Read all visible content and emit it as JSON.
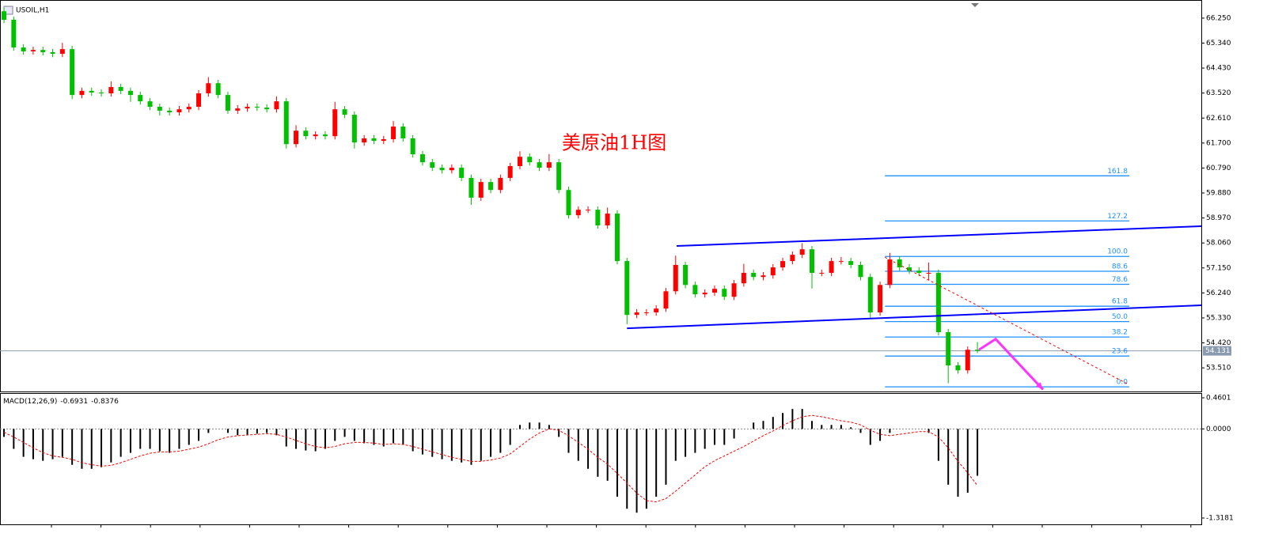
{
  "chart_data": [
    {
      "type": "candlestick",
      "symbol": "USOIL,H1",
      "title": "美原油1H图",
      "up_color": "#ff0000",
      "down_color": "#00c000",
      "xlim": [
        -0.41,
        123
      ],
      "ylim": [
        52.65,
        66.91
      ],
      "yticks": [
        {
          "value": 66.25,
          "label": "66.250"
        },
        {
          "value": 65.34,
          "label": "65.340"
        },
        {
          "value": 64.43,
          "label": "64.430"
        },
        {
          "value": 63.52,
          "label": "63.520"
        },
        {
          "value": 62.61,
          "label": "62.610"
        },
        {
          "value": 61.7,
          "label": "61.700"
        },
        {
          "value": 60.79,
          "label": "60.790"
        },
        {
          "value": 59.88,
          "label": "59.880"
        },
        {
          "value": 58.97,
          "label": "58.970"
        },
        {
          "value": 58.06,
          "label": "58.060"
        },
        {
          "value": 57.15,
          "label": "57.150"
        },
        {
          "value": 56.24,
          "label": "56.240"
        },
        {
          "value": 55.33,
          "label": "55.330"
        },
        {
          "value": 54.42,
          "label": "54.420"
        },
        {
          "value": 53.51,
          "label": "53.510"
        }
      ],
      "last_price": 54.131,
      "ohlc": [
        [
          66.5,
          66.62,
          66.07,
          66.19
        ],
        [
          66.19,
          66.31,
          65.06,
          65.18
        ],
        [
          65.18,
          65.3,
          64.92,
          65.04
        ],
        [
          65.04,
          65.21,
          64.92,
          65.09
        ],
        [
          65.09,
          65.21,
          64.89,
          65.01
        ],
        [
          65.01,
          65.13,
          64.83,
          64.95
        ],
        [
          64.95,
          65.35,
          64.83,
          65.12
        ],
        [
          65.12,
          65.24,
          63.3,
          63.45
        ],
        [
          63.45,
          63.72,
          63.33,
          63.6
        ],
        [
          63.6,
          63.72,
          63.42,
          63.54
        ],
        [
          63.54,
          63.66,
          63.39,
          63.51
        ],
        [
          63.51,
          63.95,
          63.39,
          63.74
        ],
        [
          63.74,
          63.86,
          63.48,
          63.6
        ],
        [
          63.6,
          63.72,
          63.2,
          63.45
        ],
        [
          63.45,
          63.57,
          63.1,
          63.22
        ],
        [
          63.22,
          63.34,
          62.9,
          63.02
        ],
        [
          63.02,
          63.14,
          62.7,
          62.88
        ],
        [
          62.88,
          63.0,
          62.7,
          62.82
        ],
        [
          62.82,
          63.05,
          62.7,
          62.93
        ],
        [
          62.93,
          63.14,
          62.81,
          63.02
        ],
        [
          63.02,
          63.63,
          62.9,
          63.51
        ],
        [
          63.51,
          64.1,
          63.39,
          63.88
        ],
        [
          63.88,
          64.0,
          63.33,
          63.45
        ],
        [
          63.45,
          63.57,
          62.76,
          62.88
        ],
        [
          62.88,
          63.08,
          62.76,
          62.96
        ],
        [
          62.96,
          63.14,
          62.84,
          63.02
        ],
        [
          63.02,
          63.14,
          62.87,
          62.99
        ],
        [
          62.99,
          63.11,
          62.81,
          62.93
        ],
        [
          62.93,
          63.4,
          62.81,
          63.22
        ],
        [
          63.22,
          63.34,
          61.5,
          61.66
        ],
        [
          61.66,
          62.35,
          61.54,
          62.15
        ],
        [
          62.15,
          62.27,
          61.83,
          61.95
        ],
        [
          61.95,
          62.13,
          61.83,
          62.01
        ],
        [
          62.01,
          62.13,
          61.83,
          61.95
        ],
        [
          61.95,
          63.2,
          61.83,
          62.93
        ],
        [
          62.93,
          63.05,
          62.61,
          62.73
        ],
        [
          62.73,
          62.85,
          61.5,
          61.72
        ],
        [
          61.72,
          61.99,
          61.6,
          61.87
        ],
        [
          61.87,
          61.99,
          61.66,
          61.78
        ],
        [
          61.78,
          61.96,
          61.66,
          61.84
        ],
        [
          61.84,
          62.5,
          61.72,
          62.3
        ],
        [
          62.3,
          62.42,
          61.75,
          61.87
        ],
        [
          61.87,
          61.99,
          61.17,
          61.29
        ],
        [
          61.29,
          61.41,
          60.88,
          61.0
        ],
        [
          61.0,
          61.12,
          60.68,
          60.8
        ],
        [
          60.8,
          60.92,
          60.59,
          60.71
        ],
        [
          60.71,
          60.92,
          60.59,
          60.8
        ],
        [
          60.8,
          60.92,
          60.31,
          60.43
        ],
        [
          60.43,
          60.55,
          59.45,
          59.71
        ],
        [
          59.71,
          60.4,
          59.59,
          60.28
        ],
        [
          60.28,
          60.4,
          59.87,
          59.99
        ],
        [
          59.99,
          60.55,
          59.87,
          60.43
        ],
        [
          60.43,
          60.98,
          60.31,
          60.86
        ],
        [
          60.86,
          61.4,
          60.74,
          61.2
        ],
        [
          61.2,
          61.32,
          60.88,
          61.0
        ],
        [
          61.0,
          61.12,
          60.68,
          60.8
        ],
        [
          60.8,
          61.3,
          60.68,
          61.0
        ],
        [
          61.0,
          61.12,
          59.87,
          59.99
        ],
        [
          59.99,
          60.11,
          58.95,
          59.07
        ],
        [
          59.07,
          59.39,
          58.95,
          59.27
        ],
        [
          59.27,
          59.39,
          59.15,
          59.27
        ],
        [
          59.27,
          59.39,
          58.58,
          58.7
        ],
        [
          58.7,
          59.35,
          58.58,
          59.13
        ],
        [
          59.13,
          59.25,
          57.28,
          57.4
        ],
        [
          57.4,
          57.52,
          55.1,
          55.44
        ],
        [
          55.44,
          55.65,
          55.32,
          55.53
        ],
        [
          55.53,
          55.65,
          55.41,
          55.53
        ],
        [
          55.53,
          55.79,
          55.41,
          55.67
        ],
        [
          55.67,
          56.42,
          55.55,
          56.3
        ],
        [
          56.3,
          57.6,
          56.18,
          57.26
        ],
        [
          57.26,
          57.38,
          56.41,
          56.53
        ],
        [
          56.53,
          56.65,
          56.07,
          56.19
        ],
        [
          56.19,
          56.37,
          56.07,
          56.25
        ],
        [
          56.25,
          56.51,
          56.13,
          56.39
        ],
        [
          56.39,
          56.51,
          55.98,
          56.1
        ],
        [
          56.1,
          56.71,
          55.98,
          56.59
        ],
        [
          56.59,
          57.3,
          56.47,
          56.97
        ],
        [
          56.97,
          57.09,
          56.7,
          56.82
        ],
        [
          56.82,
          57.0,
          56.7,
          56.88
        ],
        [
          56.88,
          57.29,
          56.76,
          57.17
        ],
        [
          57.17,
          57.52,
          57.05,
          57.4
        ],
        [
          57.4,
          57.75,
          57.28,
          57.63
        ],
        [
          57.63,
          58.05,
          57.51,
          57.83
        ],
        [
          57.83,
          57.95,
          56.4,
          56.97
        ],
        [
          56.97,
          57.09,
          56.85,
          56.97
        ],
        [
          56.97,
          57.52,
          56.85,
          57.4
        ],
        [
          57.4,
          57.55,
          57.28,
          57.4
        ],
        [
          57.4,
          57.52,
          57.14,
          57.26
        ],
        [
          57.26,
          57.38,
          56.7,
          56.82
        ],
        [
          56.82,
          56.94,
          55.3,
          55.53
        ],
        [
          55.53,
          56.65,
          55.41,
          56.53
        ],
        [
          56.53,
          57.7,
          56.41,
          57.46
        ],
        [
          57.46,
          57.58,
          57.05,
          57.17
        ],
        [
          57.17,
          57.29,
          56.93,
          57.05
        ],
        [
          57.05,
          57.17,
          56.85,
          56.97
        ],
        [
          56.97,
          57.35,
          56.7,
          56.97
        ],
        [
          56.97,
          57.09,
          54.69,
          54.81
        ],
        [
          54.81,
          54.93,
          52.95,
          53.6
        ],
        [
          53.6,
          53.72,
          53.3,
          53.42
        ],
        [
          53.42,
          54.29,
          53.3,
          54.17
        ],
        [
          54.17,
          54.45,
          54.05,
          54.13
        ]
      ],
      "channel": [
        {
          "x": [
            64,
            123
          ],
          "y": [
            54.95,
            55.79
          ],
          "color": "#0000ff"
        },
        {
          "x": [
            69.1,
            123
          ],
          "y": [
            57.95,
            58.67
          ],
          "color": "#0000ff"
        }
      ],
      "trend_line": {
        "x": [
          90.5,
          115.4
        ],
        "y": [
          57.54,
          52.93
        ],
        "color": "#ff0000"
      },
      "arrow": {
        "x": [
          100.16,
          101.87,
          106.74
        ],
        "y": [
          54.17,
          54.56,
          52.72
        ],
        "color": "#ff33ff"
      },
      "fibonacci": {
        "low": 52.82,
        "high": 57.57,
        "start": 90.5,
        "end": 115.6,
        "color": "#1e90ff",
        "levels": [
          {
            "value": 0,
            "label": "0.0"
          },
          23.6,
          38.2,
          {
            "value": 50,
            "label": "50.0"
          },
          61.8,
          78.6,
          88.6,
          {
            "value": 100,
            "label": "100.0"
          },
          127.2,
          161.8
        ]
      }
    },
    {
      "type": "macd",
      "label": "MACD(12,26,9)",
      "xlim": [
        -0.41,
        123
      ],
      "ylim": [
        -1.3181,
        0.4601
      ],
      "yticks": [
        0.4601,
        {
          "value": 0,
          "label": "0.0000"
        },
        -1.3181
      ],
      "zero_line": true,
      "histogram": {
        "color": "#000000",
        "values": [
          -0.118,
          -0.295,
          -0.413,
          -0.448,
          -0.472,
          -0.448,
          -0.413,
          -0.531,
          -0.59,
          -0.59,
          -0.566,
          -0.496,
          -0.413,
          -0.354,
          -0.295,
          -0.295,
          -0.33,
          -0.354,
          -0.295,
          -0.236,
          -0.177,
          -0.059,
          0,
          -0.059,
          -0.094,
          -0.083,
          -0.071,
          -0.059,
          -0.094,
          -0.26,
          -0.295,
          -0.319,
          -0.33,
          -0.295,
          -0.177,
          -0.118,
          -0.177,
          -0.212,
          -0.236,
          -0.26,
          -0.212,
          -0.236,
          -0.33,
          -0.378,
          -0.413,
          -0.448,
          -0.472,
          -0.496,
          -0.531,
          -0.472,
          -0.413,
          -0.354,
          -0.236,
          0.059,
          0.094,
          0.094,
          0.059,
          -0.118,
          -0.354,
          -0.472,
          -0.59,
          -0.708,
          -0.767,
          -1.003,
          -1.18,
          -1.239,
          -1.18,
          -1.003,
          -0.826,
          -0.472,
          -0.413,
          -0.354,
          -0.295,
          -0.236,
          -0.236,
          -0.142,
          0,
          0.094,
          0.118,
          0.177,
          0.236,
          0.295,
          0.295,
          0.118,
          0.059,
          0.059,
          0.059,
          0.024,
          -0.059,
          -0.236,
          -0.177,
          -0.059,
          0,
          0,
          0,
          -0.059,
          -0.472,
          -0.826,
          -1.003,
          -0.944,
          -0.6931
        ]
      },
      "signal": {
        "color": "#ff0000",
        "values": [
          -0.05,
          -0.12,
          -0.2,
          -0.28,
          -0.35,
          -0.4,
          -0.42,
          -0.45,
          -0.5,
          -0.53,
          -0.55,
          -0.54,
          -0.5,
          -0.45,
          -0.4,
          -0.36,
          -0.34,
          -0.34,
          -0.33,
          -0.3,
          -0.27,
          -0.22,
          -0.16,
          -0.12,
          -0.1,
          -0.09,
          -0.08,
          -0.07,
          -0.08,
          -0.12,
          -0.17,
          -0.22,
          -0.26,
          -0.28,
          -0.26,
          -0.22,
          -0.2,
          -0.2,
          -0.21,
          -0.23,
          -0.22,
          -0.23,
          -0.26,
          -0.3,
          -0.34,
          -0.38,
          -0.42,
          -0.45,
          -0.48,
          -0.48,
          -0.46,
          -0.43,
          -0.37,
          -0.26,
          -0.15,
          -0.06,
          0,
          -0.02,
          -0.1,
          -0.2,
          -0.3,
          -0.42,
          -0.52,
          -0.66,
          -0.8,
          -0.95,
          -1.06,
          -1.08,
          -1.03,
          -0.92,
          -0.8,
          -0.68,
          -0.56,
          -0.47,
          -0.4,
          -0.33,
          -0.26,
          -0.18,
          -0.1,
          -0.03,
          0.05,
          0.12,
          0.18,
          0.2,
          0.18,
          0.15,
          0.12,
          0.1,
          0.06,
          -0.02,
          -0.08,
          -0.1,
          -0.08,
          -0.06,
          -0.04,
          -0.04,
          -0.12,
          -0.28,
          -0.48,
          -0.65,
          -0.8376
        ]
      }
    }
  ]
}
